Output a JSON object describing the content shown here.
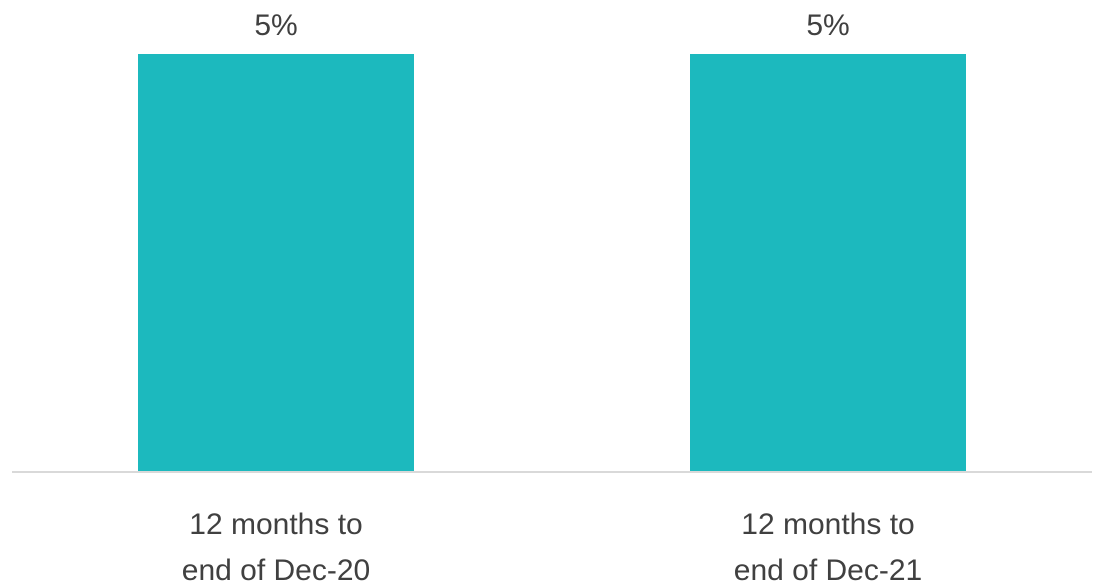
{
  "chart_data": {
    "type": "bar",
    "title": "",
    "xlabel": "",
    "ylabel": "",
    "categories": [
      [
        "12 months to",
        "end of Dec-20"
      ],
      [
        "12 months to",
        "end of Dec-21"
      ]
    ],
    "values": [
      5,
      5
    ],
    "data_labels": [
      "5%",
      "5%"
    ],
    "ylim": [
      0,
      5
    ],
    "grid": false,
    "legend": "none",
    "colors": {
      "bar": "#1CB9BE",
      "axis": "#D9D9D9",
      "text": "#404040"
    }
  }
}
